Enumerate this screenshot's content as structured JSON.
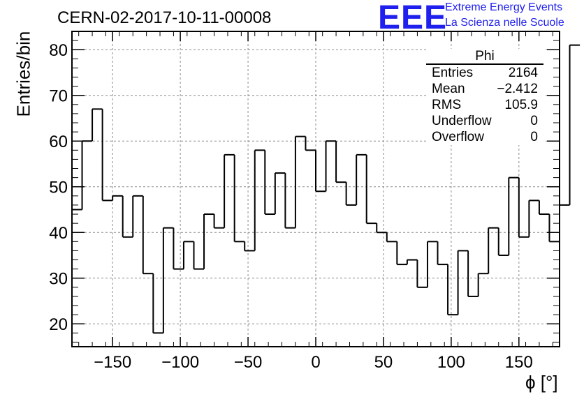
{
  "header": {
    "title": "CERN-02-2017-10-11-00008",
    "logo_text": "EEE",
    "logo_line1": "Extreme Energy Events",
    "logo_line2": "La Scienza nelle Scuole"
  },
  "stats": {
    "name": "Phi",
    "rows": [
      {
        "label": "Entries",
        "value": "2164"
      },
      {
        "label": "Mean",
        "value": "−2.412"
      },
      {
        "label": "RMS",
        "value": "105.9"
      },
      {
        "label": "Underflow",
        "value": "0"
      },
      {
        "label": "Overflow",
        "value": "0"
      }
    ]
  },
  "colors": {
    "logo": "#2020ee",
    "line": "#000000",
    "grid": "#8c8c8c"
  },
  "chart_data": {
    "type": "histogram",
    "title": "CERN-02-2017-10-11-00008",
    "xlabel": "ϕ [°]",
    "ylabel": "Entries/bin",
    "xlim": [
      -180,
      180
    ],
    "ylim": [
      15,
      84
    ],
    "grid": true,
    "bin_width": 7.5,
    "bin_start": -180,
    "values": [
      45,
      60,
      67,
      47,
      48,
      39,
      48,
      31,
      18,
      41,
      32,
      38,
      32,
      44,
      41,
      57,
      38,
      36,
      58,
      44,
      53,
      41,
      61,
      58,
      49,
      60,
      51,
      46,
      57,
      42,
      40,
      38,
      33,
      34,
      28,
      38,
      33,
      22,
      36,
      26,
      31,
      41,
      35,
      52,
      39,
      47,
      44,
      38,
      46,
      81
    ],
    "xticks": [
      -150,
      -100,
      -50,
      0,
      50,
      100,
      150
    ],
    "xtick_labels": [
      "−150",
      "−100",
      "−50",
      "0",
      "50",
      "100",
      "150"
    ],
    "yticks": [
      20,
      30,
      40,
      50,
      60,
      70,
      80
    ],
    "ytick_labels": [
      "20",
      "30",
      "40",
      "50",
      "60",
      "70",
      "80"
    ]
  }
}
